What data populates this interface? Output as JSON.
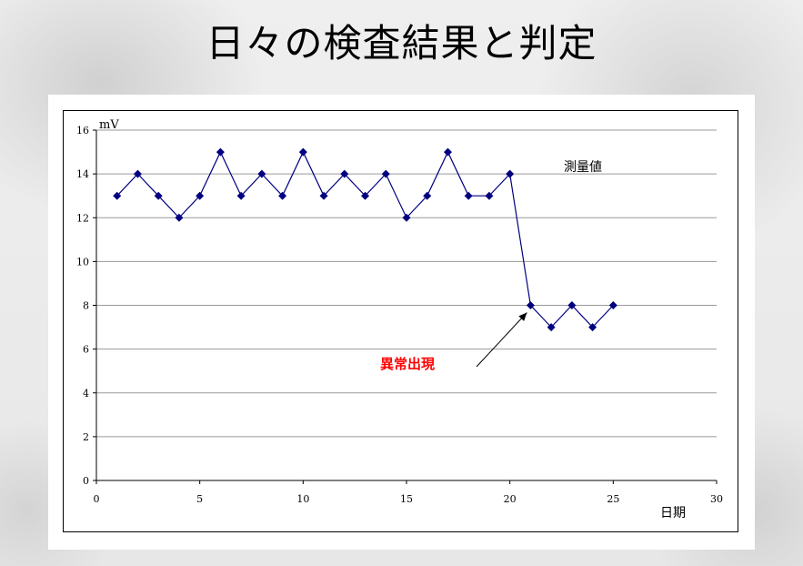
{
  "title": "日々の検査結果と判定",
  "chart_data": {
    "type": "line",
    "title": "",
    "xlabel": "日期",
    "ylabel": "mV",
    "xlim": [
      0,
      30
    ],
    "ylim": [
      0,
      16
    ],
    "x_ticks": [
      0,
      5,
      10,
      15,
      20,
      25,
      30
    ],
    "y_ticks": [
      0,
      2,
      4,
      6,
      8,
      10,
      12,
      14,
      16
    ],
    "grid": "horizontal",
    "legend_position": "top-right",
    "series": [
      {
        "name": "測量値",
        "color": "#000080",
        "marker": "diamond",
        "x": [
          1,
          2,
          3,
          4,
          5,
          6,
          7,
          8,
          9,
          10,
          11,
          12,
          13,
          14,
          15,
          16,
          17,
          18,
          19,
          20,
          21,
          22,
          23,
          24,
          25
        ],
        "y": [
          13,
          14,
          13,
          12,
          13,
          15,
          13,
          14,
          13,
          15,
          13,
          14,
          13,
          14,
          12,
          13,
          15,
          13,
          13,
          14,
          8,
          7,
          8,
          7,
          8
        ]
      }
    ],
    "annotations": [
      {
        "text": "異常出現",
        "color": "#ff0000",
        "target_x": 21,
        "target_y": 8
      }
    ]
  }
}
